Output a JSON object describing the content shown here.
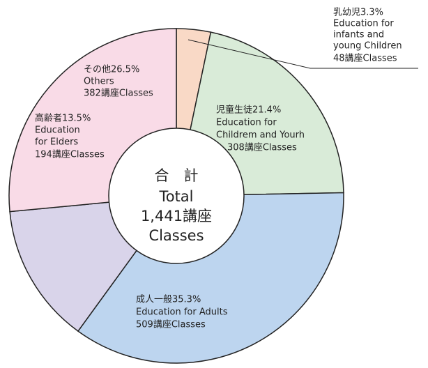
{
  "chart_data": {
    "type": "donut",
    "center_label": [
      "合　計",
      "Total",
      "1,441講座",
      "Classes"
    ],
    "values": [
      3.3,
      21.4,
      35.3,
      13.5,
      26.5
    ],
    "value_labels": [
      "乳幼児3.3%",
      "児童生徒21.4%",
      "成人一般35.3%",
      "高齢者13.5%",
      "その他26.5%"
    ],
    "descriptions": [
      [
        "Education for",
        "infants and",
        "young Children"
      ],
      [
        "Education for",
        "Childrem and Yourh"
      ],
      [
        "Education for Adults"
      ],
      [
        "Education",
        "for Elders"
      ],
      [
        "Others"
      ]
    ],
    "count_labels": [
      "48講座Classes",
      "308講座Classes",
      "509講座Classes",
      "194講座Classes",
      "382講座Classes"
    ],
    "colors": [
      "#f9d9c6",
      "#d9ebd8",
      "#bdd5ef",
      "#d9d4ea",
      "#f9dbe7"
    ]
  }
}
